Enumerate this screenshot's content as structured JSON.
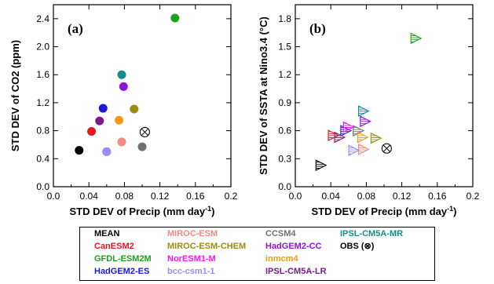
{
  "chart_data": [
    {
      "type": "scatter",
      "panel_label": "(a)",
      "xlabel": "STD DEV of Precip (mm day",
      "xlabel_sup": "-1",
      "xlabel_end": ")",
      "ylabel": "STD DEV of CO2 (ppm)",
      "xlim": [
        0,
        0.2
      ],
      "ylim": [
        0,
        2.6
      ],
      "xticks": [
        "0.0",
        "0.04",
        "0.08",
        "0.12",
        "0.16",
        "0.2"
      ],
      "yticks": [
        "0.0",
        "0.4",
        "0.8",
        "1.2",
        "1.6",
        "2.0",
        "2.4"
      ],
      "marker": "circle",
      "points": [
        {
          "name": "MEAN",
          "x": 0.029,
          "y": 0.52
        },
        {
          "name": "CanESM2",
          "x": 0.043,
          "y": 0.79
        },
        {
          "name": "GFDL-ESM2M",
          "x": 0.137,
          "y": 2.41
        },
        {
          "name": "HadGEM2-ES",
          "x": 0.056,
          "y": 1.12
        },
        {
          "name": "MIROC-ESM",
          "x": 0.077,
          "y": 0.64
        },
        {
          "name": "MIROC-ESM-CHEM",
          "x": 0.091,
          "y": 1.11
        },
        {
          "name": "NorESM1-M",
          "x": 0.06,
          "y": 0.5
        },
        {
          "name": "bcc-csm1-1",
          "x": 0.06,
          "y": 0.5
        },
        {
          "name": "CCSM4",
          "x": 0.1,
          "y": 0.57
        },
        {
          "name": "HadGEM2-CC",
          "x": 0.079,
          "y": 1.43
        },
        {
          "name": "inmcm4",
          "x": 0.074,
          "y": 0.95
        },
        {
          "name": "IPSL-CM5A-LR",
          "x": 0.052,
          "y": 0.94
        },
        {
          "name": "IPSL-CM5A-MR",
          "x": 0.077,
          "y": 1.6
        }
      ],
      "obs": {
        "x": 0.103,
        "y": 0.78
      }
    },
    {
      "type": "scatter",
      "panel_label": "(b)",
      "xlabel": "STD DEV of Precip (mm day",
      "xlabel_sup": "-1",
      "xlabel_end": ")",
      "ylabel": "STD DEV of SSTA at Nino3.4 (°C)",
      "xlim": [
        0,
        0.2
      ],
      "ylim": [
        0,
        1.95
      ],
      "xticks": [
        "0.0",
        "0.04",
        "0.08",
        "0.12",
        "0.16",
        "0.2"
      ],
      "yticks": [
        "0.0",
        "0.3",
        "0.6",
        "0.9",
        "1.2",
        "1.5",
        "1.8"
      ],
      "marker": "hatched-triangle-right",
      "points": [
        {
          "name": "MEAN",
          "x": 0.029,
          "y": 0.23
        },
        {
          "name": "CanESM2",
          "x": 0.043,
          "y": 0.55
        },
        {
          "name": "GFDL-ESM2M",
          "x": 0.136,
          "y": 1.59
        },
        {
          "name": "HadGEM2-ES",
          "x": 0.057,
          "y": 0.6
        },
        {
          "name": "MIROC-ESM",
          "x": 0.077,
          "y": 0.4
        },
        {
          "name": "MIROC-ESM-CHEM",
          "x": 0.091,
          "y": 0.52
        },
        {
          "name": "NorESM1-M",
          "x": 0.06,
          "y": 0.64
        },
        {
          "name": "bcc-csm1-1",
          "x": 0.066,
          "y": 0.39
        },
        {
          "name": "CCSM4",
          "x": 0.071,
          "y": 0.6
        },
        {
          "name": "HadGEM2-CC",
          "x": 0.079,
          "y": 0.7
        },
        {
          "name": "inmcm4",
          "x": 0.076,
          "y": 0.53
        },
        {
          "name": "IPSL-CM5A-LR",
          "x": 0.05,
          "y": 0.53
        },
        {
          "name": "IPSL-CM5A-MR",
          "x": 0.077,
          "y": 0.81
        }
      ],
      "obs": {
        "x": 0.103,
        "y": 0.41
      }
    }
  ],
  "legend": {
    "entries": [
      {
        "label": "MEAN",
        "color": "#000000"
      },
      {
        "label": "CanESM2",
        "color": "#e8141e"
      },
      {
        "label": "GFDL-ESM2M",
        "color": "#1fa21f"
      },
      {
        "label": "HadGEM2-ES",
        "color": "#1a1add"
      },
      {
        "label": "MIROC-ESM",
        "color": "#f28a82"
      },
      {
        "label": "MIROC-ESM-CHEM",
        "color": "#9a8c14"
      },
      {
        "label": "NorESM1-M",
        "color": "#ff14ff"
      },
      {
        "label": "bcc-csm1-1",
        "color": "#9c8cf0"
      },
      {
        "label": "CCSM4",
        "color": "#707070"
      },
      {
        "label": "HadGEM2-CC",
        "color": "#8c14d4"
      },
      {
        "label": "inmcm4",
        "color": "#f29a14"
      },
      {
        "label": "IPSL-CM5A-LR",
        "color": "#7a1a8a"
      },
      {
        "label": "IPSL-CM5A-MR",
        "color": "#148c8c"
      },
      {
        "label": "OBS (⊗)",
        "color": "#000000"
      }
    ]
  }
}
